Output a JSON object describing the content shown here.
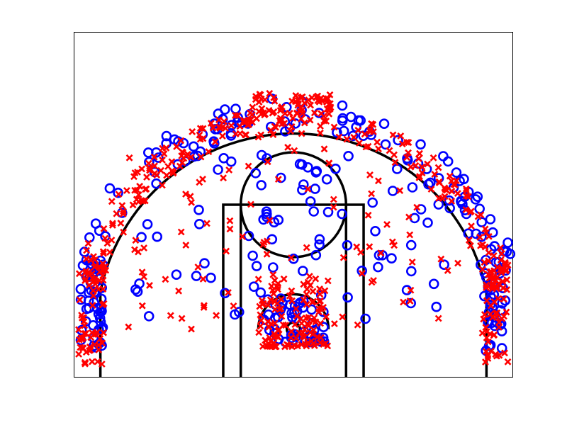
{
  "chart_data": {
    "type": "scatter",
    "title": "",
    "xlabel": "",
    "ylabel": "",
    "xlim": [
      -25,
      25
    ],
    "ylim": [
      -5.5,
      34
    ],
    "grid": false,
    "legend": false,
    "colors": {
      "made": "#0000ff",
      "missed": "#ff0000",
      "court_lines": "#000000"
    },
    "court": {
      "hoop": {
        "x": 0,
        "y": 0,
        "r": 0.75
      },
      "paint_outer": {
        "x0": -8,
        "x1": 8,
        "y0": -5.5,
        "y1": 14.25
      },
      "paint_inner": {
        "x0": -6,
        "x1": 6,
        "y0": -5.5,
        "y1": 14.25
      },
      "free_throw_circle": {
        "x": 0,
        "y": 14.25,
        "r": 6
      },
      "restricted_arc": {
        "x": 0,
        "y": 0,
        "r": 4
      },
      "three_point": {
        "corner_x": 22,
        "corner_top_y": 8.25,
        "r": 22.4
      }
    },
    "series": [
      {
        "marker": "o",
        "seed": 11,
        "clusters": [
          {
            "type": "arc",
            "n": 110,
            "r": [
              22.5,
              26.5
            ],
            "theta": [
              15,
              165
            ]
          },
          {
            "type": "corner",
            "n": 45,
            "x": [
              -24.3,
              -21.7
            ],
            "y": [
              -2.5,
              8
            ]
          },
          {
            "type": "corner",
            "n": 35,
            "x": [
              21.7,
              24.3
            ],
            "y": [
              -2.5,
              8
            ]
          },
          {
            "type": "mid",
            "n": 80,
            "x": [
              -18,
              18
            ],
            "y": [
              1,
              20
            ]
          },
          {
            "type": "rim",
            "n": 45,
            "x": [
              -3.5,
              3.5
            ],
            "y": [
              -1.5,
              4
            ]
          },
          {
            "type": "rect",
            "n": 10,
            "x": [
              -5,
              5
            ],
            "y": [
              5,
              19
            ]
          }
        ]
      },
      {
        "marker": "x",
        "seed": 29,
        "clusters": [
          {
            "type": "arc",
            "n": 230,
            "r": [
              22.3,
              25.5
            ],
            "theta": [
              12,
              168
            ]
          },
          {
            "type": "top",
            "n": 60,
            "x": [
              -5,
              5
            ],
            "y": [
              24.5,
              27
            ]
          },
          {
            "type": "corner",
            "n": 60,
            "x": [
              -24.5,
              -21.5
            ],
            "y": [
              -4,
              8
            ]
          },
          {
            "type": "corner",
            "n": 55,
            "x": [
              21.5,
              24.5
            ],
            "y": [
              -4,
              8
            ]
          },
          {
            "type": "mid",
            "n": 110,
            "x": [
              -19,
              19
            ],
            "y": [
              0,
              21
            ]
          },
          {
            "type": "rim",
            "n": 120,
            "x": [
              -4,
              4
            ],
            "y": [
              -2,
              6
            ]
          }
        ]
      }
    ]
  }
}
